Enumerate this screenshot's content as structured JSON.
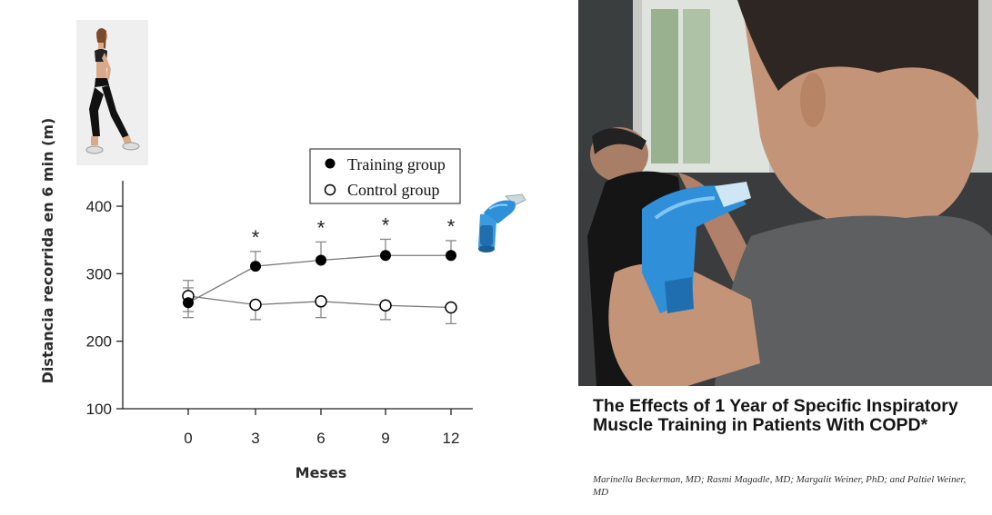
{
  "chart_data": {
    "type": "line",
    "xlabel": "Meses",
    "ylabel": "Distancia recorrida en 6 min (m)",
    "categories": [
      "0",
      "3",
      "6",
      "9",
      "12"
    ],
    "x": [
      0,
      3,
      6,
      9,
      12
    ],
    "ylim": [
      100,
      400
    ],
    "yticks": [
      100,
      200,
      300,
      400
    ],
    "grid": false,
    "legend_position": "top-right",
    "series": [
      {
        "name": "Training group",
        "marker": "filled-circle",
        "color": "#000000",
        "values": [
          257,
          311,
          320,
          327,
          327
        ],
        "error": [
          22,
          22,
          27,
          24,
          22
        ]
      },
      {
        "name": "Control group",
        "marker": "open-circle",
        "color": "#000000",
        "values": [
          267,
          254,
          259,
          253,
          250
        ],
        "error": [
          23,
          22,
          24,
          21,
          24
        ]
      }
    ],
    "significance_marker": "*",
    "significant_x": [
      3,
      6,
      9,
      12
    ]
  },
  "paper": {
    "title": "The Effects of 1 Year of Specific Inspiratory Muscle Training in Patients With COPD*",
    "authors": "Marinella Beckerman, MD; Rasmi Magadle, MD; Margalit Weiner, PhD; and Paltiel Weiner, MD"
  },
  "colors": {
    "device_blue": "#2f8fd8",
    "photo_dark": "#2a2d2e"
  },
  "icons": {
    "walker": "woman-walking-photo",
    "device": "inspiratory-trainer-device",
    "photo": "man-using-inspiratory-trainer-photo"
  }
}
